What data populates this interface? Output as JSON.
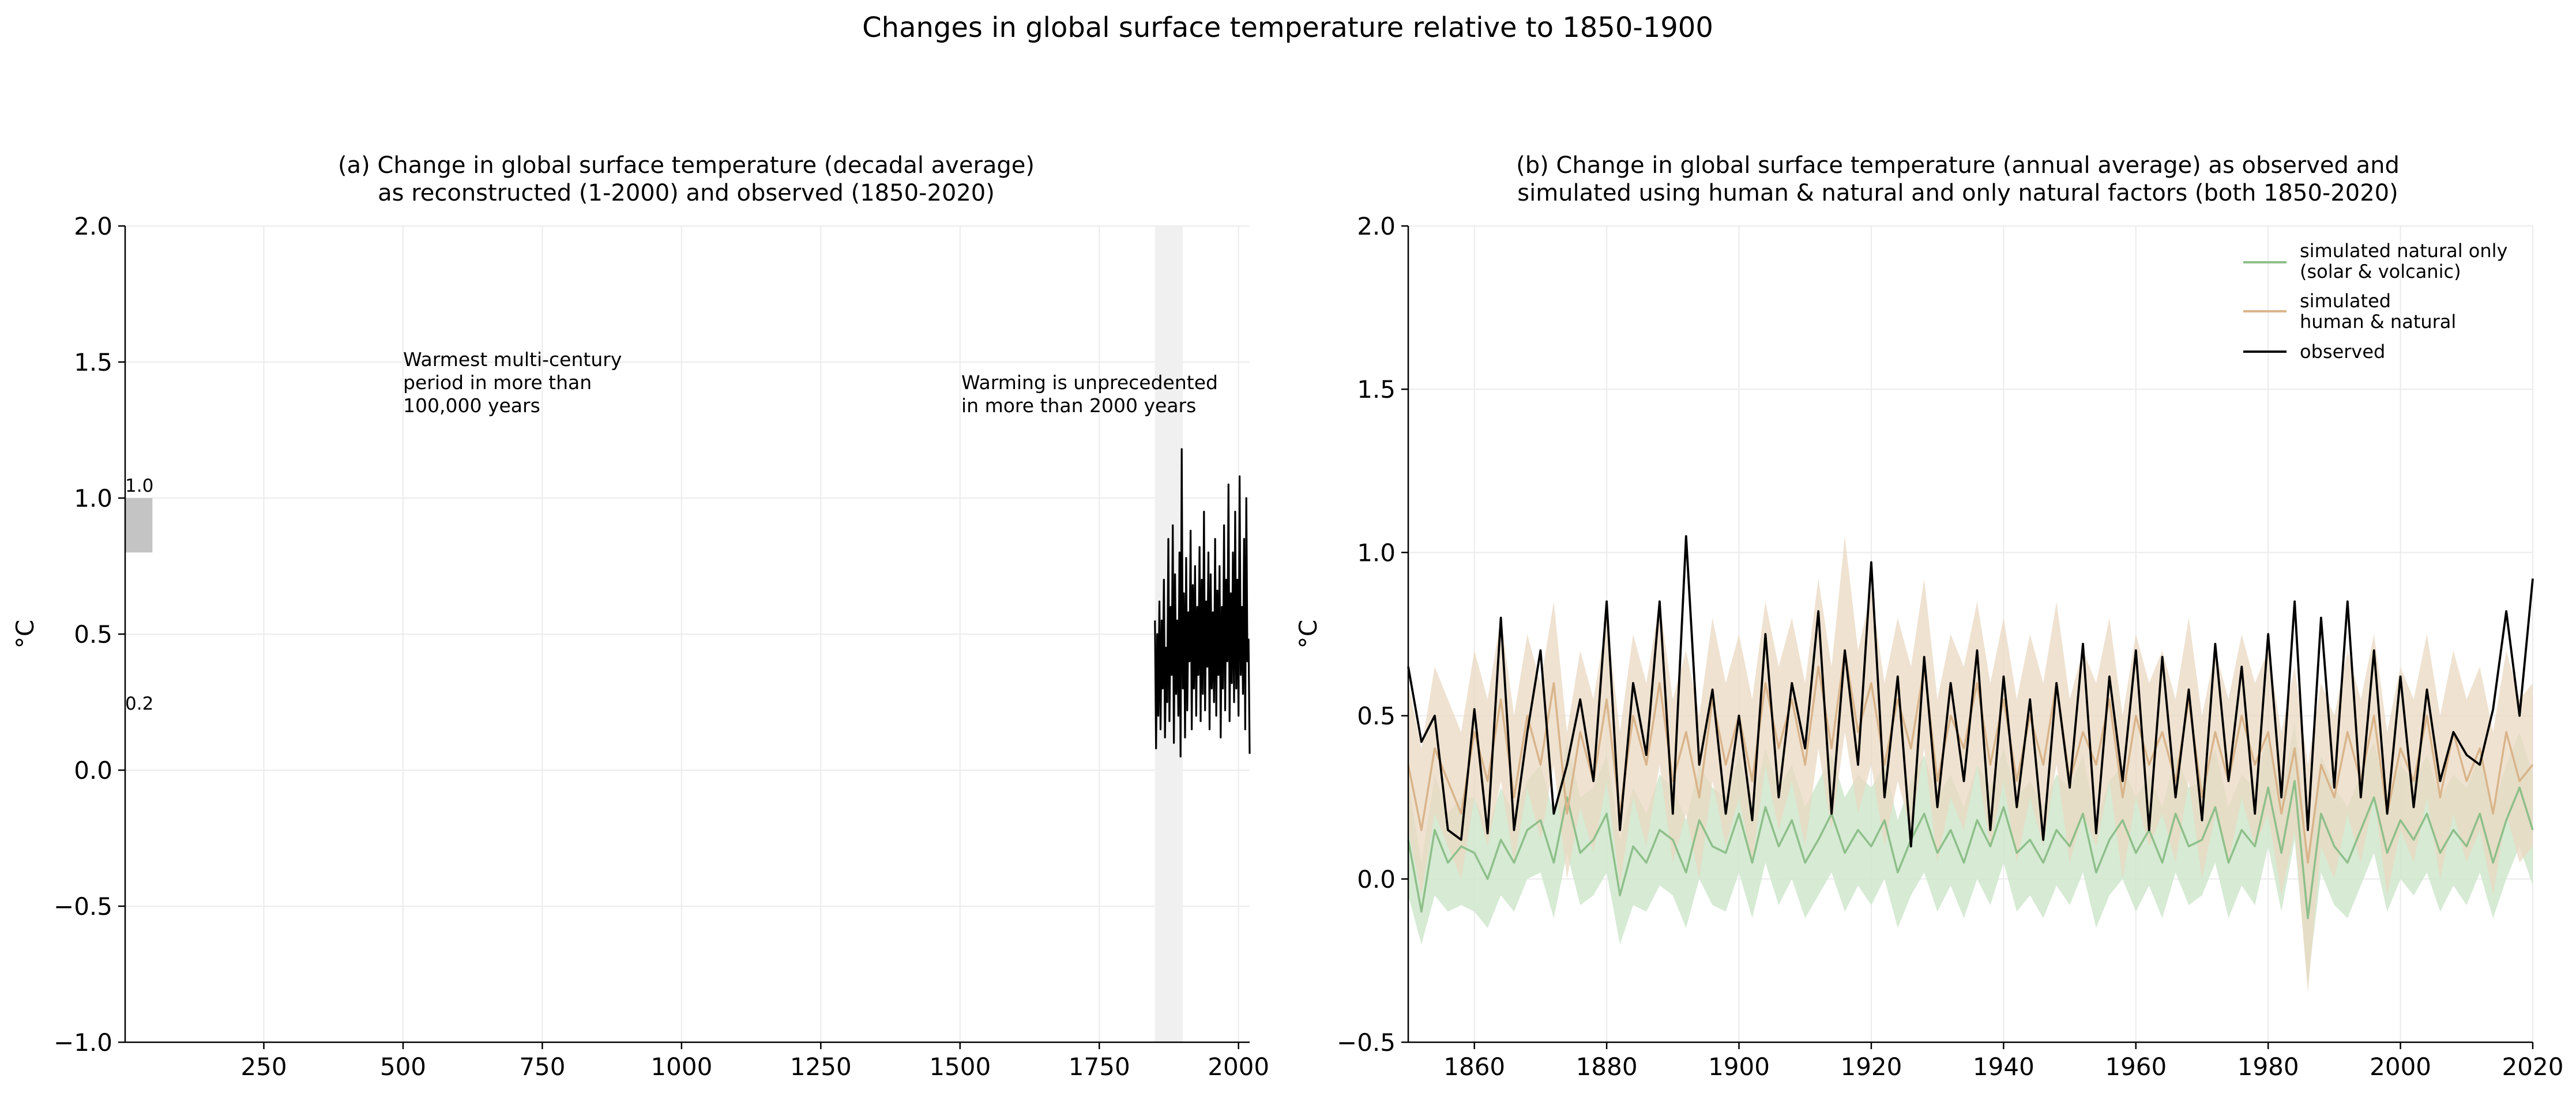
{
  "figure_title": "Changes in global surface temperature relative to 1850-1900",
  "panels": {
    "a": {
      "title_line1": "(a) Change in global surface temperature (decadal average)",
      "title_line2": "as reconstructed (1-2000) and observed (1850-2020)",
      "ylabel": "°C",
      "annotation_left": [
        "Warmest multi-century",
        "period in more than",
        "100,000 years"
      ],
      "annotation_right": [
        "Warming is unprecedented",
        "in more than 2000 years"
      ],
      "range_top_label": "1.0",
      "range_bottom_label": "0.2"
    },
    "b": {
      "title_line1": "(b) Change in global surface temperature (annual average) as observed and",
      "title_line2": "simulated using human & natural and only natural factors (both 1850-2020)",
      "ylabel": "°C",
      "legend": {
        "natural_line1": "simulated natural only",
        "natural_line2": "(solar & volcanic)",
        "human_line1": "simulated",
        "human_line2": "human & natural",
        "observed": "observed"
      }
    }
  },
  "colors": {
    "observed": "#000000",
    "human_natural": "#d9b48a",
    "human_natural_band": "#ead8c2",
    "natural_only": "#8ebf8a",
    "natural_only_band": "#cfe6cc",
    "highlight_bar": "#c4c4c4",
    "ref_span": "#f0f0f0",
    "grid": "#ebebeb"
  },
  "chart_data": [
    {
      "type": "line",
      "panel": "a",
      "xlim": [
        1,
        2020
      ],
      "ylim": [
        -1.0,
        2.0
      ],
      "x_ticks": [
        250,
        500,
        750,
        1000,
        1250,
        1500,
        1750,
        2000
      ],
      "x_tick_labels": [
        "250",
        "500",
        "750",
        "1000",
        "1250",
        "1500",
        "1750",
        "2000"
      ],
      "y_ticks": [
        -1.0,
        -0.5,
        0.0,
        0.5,
        1.0,
        1.5,
        2.0
      ],
      "y_tick_labels": [
        "−1.0",
        "−0.5",
        "0.0",
        "0.5",
        "1.0",
        "1.5",
        "2.0"
      ],
      "grid": true,
      "shaded_span_x": [
        1850,
        1900
      ],
      "highlight_bar": {
        "x": [
          1,
          50
        ],
        "y": [
          0.8,
          1.0
        ]
      },
      "series": [
        {
          "key": "observed",
          "x": [
            1850,
            1852,
            1854,
            1856,
            1858,
            1860,
            1862,
            1864,
            1866,
            1868,
            1870,
            1872,
            1874,
            1876,
            1878,
            1880,
            1882,
            1884,
            1886,
            1888,
            1890,
            1892,
            1894,
            1896,
            1898,
            1900,
            1902,
            1904,
            1906,
            1908,
            1910,
            1912,
            1914,
            1916,
            1918,
            1920,
            1922,
            1924,
            1926,
            1928,
            1930,
            1932,
            1934,
            1936,
            1938,
            1940,
            1942,
            1944,
            1946,
            1948,
            1950,
            1952,
            1954,
            1956,
            1958,
            1960,
            1962,
            1964,
            1966,
            1968,
            1970,
            1972,
            1974,
            1976,
            1978,
            1980,
            1982,
            1984,
            1986,
            1988,
            1990,
            1992,
            1994,
            1996,
            1998,
            2000,
            2002,
            2004,
            2006,
            2008,
            2010,
            2012,
            2014,
            2016,
            2018,
            2020
          ],
          "y": [
            0.55,
            0.08,
            0.5,
            0.2,
            0.62,
            0.15,
            0.55,
            0.3,
            0.7,
            0.12,
            0.45,
            0.25,
            0.85,
            0.18,
            0.6,
            0.35,
            0.9,
            0.1,
            0.72,
            0.28,
            0.55,
            0.2,
            0.8,
            0.05,
            1.18,
            0.3,
            0.65,
            0.12,
            0.78,
            0.22,
            0.58,
            0.4,
            0.88,
            0.15,
            0.68,
            0.3,
            0.75,
            0.2,
            0.6,
            0.35,
            0.82,
            0.18,
            0.7,
            0.28,
            0.95,
            0.22,
            0.62,
            0.38,
            0.8,
            0.15,
            0.72,
            0.3,
            0.58,
            0.25,
            0.85,
            0.2,
            0.66,
            0.35,
            0.75,
            0.12,
            0.6,
            0.3,
            0.9,
            0.22,
            0.7,
            0.4,
            1.05,
            0.18,
            0.65,
            0.32,
            0.8,
            0.25,
            0.95,
            0.3,
            0.7,
            0.2,
            1.08,
            0.35,
            0.6,
            0.28,
            0.85,
            0.15,
            1.0,
            0.4,
            0.48,
            0.06
          ]
        }
      ]
    },
    {
      "type": "line",
      "panel": "b",
      "xlim": [
        1850,
        2020
      ],
      "ylim": [
        -0.5,
        2.0
      ],
      "x_ticks": [
        1860,
        1880,
        1900,
        1920,
        1940,
        1960,
        1980,
        2000,
        2020
      ],
      "x_tick_labels": [
        "1860",
        "1880",
        "1900",
        "1920",
        "1940",
        "1960",
        "1980",
        "2000",
        "2020"
      ],
      "y_ticks": [
        -0.5,
        0.0,
        0.5,
        1.0,
        1.5,
        2.0
      ],
      "y_tick_labels": [
        "−0.5",
        "0.0",
        "0.5",
        "1.0",
        "1.5",
        "2.0"
      ],
      "grid": true,
      "legend_position": "upper right",
      "x": [
        1850,
        1852,
        1854,
        1856,
        1858,
        1860,
        1862,
        1864,
        1866,
        1868,
        1870,
        1872,
        1874,
        1876,
        1878,
        1880,
        1882,
        1884,
        1886,
        1888,
        1890,
        1892,
        1894,
        1896,
        1898,
        1900,
        1902,
        1904,
        1906,
        1908,
        1910,
        1912,
        1914,
        1916,
        1918,
        1920,
        1922,
        1924,
        1926,
        1928,
        1930,
        1932,
        1934,
        1936,
        1938,
        1940,
        1942,
        1944,
        1946,
        1948,
        1950,
        1952,
        1954,
        1956,
        1958,
        1960,
        1962,
        1964,
        1966,
        1968,
        1970,
        1972,
        1974,
        1976,
        1978,
        1980,
        1982,
        1984,
        1986,
        1988,
        1990,
        1992,
        1994,
        1996,
        1998,
        2000,
        2002,
        2004,
        2006,
        2008,
        2010,
        2012,
        2014,
        2016,
        2018,
        2020
      ],
      "series": [
        {
          "key": "natural_only",
          "y": [
            0.12,
            -0.1,
            0.15,
            0.05,
            0.1,
            0.08,
            0.0,
            0.12,
            0.05,
            0.15,
            0.18,
            0.05,
            0.25,
            0.08,
            0.12,
            0.2,
            -0.05,
            0.1,
            0.05,
            0.15,
            0.12,
            0.02,
            0.18,
            0.1,
            0.08,
            0.2,
            0.05,
            0.22,
            0.1,
            0.18,
            0.05,
            0.12,
            0.2,
            0.08,
            0.15,
            0.1,
            0.18,
            0.02,
            0.12,
            0.2,
            0.08,
            0.15,
            0.05,
            0.18,
            0.1,
            0.22,
            0.08,
            0.12,
            0.05,
            0.15,
            0.1,
            0.2,
            0.02,
            0.12,
            0.18,
            0.08,
            0.15,
            0.05,
            0.2,
            0.1,
            0.12,
            0.22,
            0.05,
            0.15,
            0.1,
            0.28,
            0.08,
            0.3,
            -0.12,
            0.2,
            0.1,
            0.05,
            0.15,
            0.25,
            0.08,
            0.18,
            0.12,
            0.2,
            0.08,
            0.15,
            0.1,
            0.2,
            0.05,
            0.18,
            0.28,
            0.15
          ],
          "lower": [
            -0.05,
            -0.2,
            -0.05,
            -0.1,
            -0.08,
            -0.1,
            -0.15,
            -0.05,
            -0.1,
            0.0,
            0.02,
            -0.12,
            0.08,
            -0.08,
            -0.05,
            0.02,
            -0.2,
            -0.08,
            -0.1,
            -0.02,
            -0.05,
            -0.15,
            0.0,
            -0.08,
            -0.1,
            0.02,
            -0.12,
            0.05,
            -0.08,
            0.0,
            -0.12,
            -0.05,
            0.02,
            -0.1,
            -0.02,
            -0.08,
            0.0,
            -0.15,
            -0.05,
            0.02,
            -0.1,
            -0.02,
            -0.12,
            0.0,
            -0.08,
            0.05,
            -0.1,
            -0.05,
            -0.12,
            -0.02,
            -0.08,
            0.02,
            -0.15,
            -0.05,
            0.0,
            -0.1,
            -0.02,
            -0.12,
            0.02,
            -0.08,
            -0.05,
            0.05,
            -0.12,
            -0.02,
            -0.08,
            0.1,
            -0.1,
            0.12,
            -0.32,
            0.02,
            -0.08,
            -0.12,
            -0.02,
            0.08,
            -0.1,
            0.0,
            -0.05,
            0.02,
            -0.1,
            -0.02,
            -0.08,
            0.02,
            -0.12,
            0.0,
            0.1,
            -0.02
          ],
          "upper": [
            0.3,
            0.05,
            0.32,
            0.2,
            0.25,
            0.25,
            0.15,
            0.28,
            0.2,
            0.3,
            0.35,
            0.2,
            0.42,
            0.25,
            0.28,
            0.38,
            0.12,
            0.28,
            0.2,
            0.32,
            0.28,
            0.18,
            0.35,
            0.28,
            0.25,
            0.38,
            0.22,
            0.4,
            0.28,
            0.35,
            0.22,
            0.3,
            0.38,
            0.25,
            0.32,
            0.28,
            0.35,
            0.18,
            0.3,
            0.38,
            0.25,
            0.32,
            0.22,
            0.35,
            0.28,
            0.4,
            0.25,
            0.3,
            0.22,
            0.32,
            0.28,
            0.38,
            0.18,
            0.3,
            0.35,
            0.25,
            0.32,
            0.22,
            0.38,
            0.28,
            0.3,
            0.4,
            0.22,
            0.32,
            0.28,
            0.45,
            0.25,
            0.48,
            0.08,
            0.38,
            0.28,
            0.22,
            0.32,
            0.42,
            0.25,
            0.35,
            0.3,
            0.38,
            0.25,
            0.32,
            0.28,
            0.38,
            0.22,
            0.35,
            0.45,
            0.32
          ]
        },
        {
          "key": "human_natural",
          "y": [
            0.35,
            0.15,
            0.4,
            0.3,
            0.2,
            0.45,
            0.3,
            0.55,
            0.25,
            0.5,
            0.35,
            0.6,
            0.2,
            0.45,
            0.3,
            0.55,
            0.2,
            0.5,
            0.35,
            0.6,
            0.3,
            0.45,
            0.25,
            0.55,
            0.35,
            0.5,
            0.3,
            0.6,
            0.4,
            0.55,
            0.35,
            0.65,
            0.4,
            0.7,
            0.45,
            0.6,
            0.35,
            0.55,
            0.4,
            0.65,
            0.3,
            0.5,
            0.4,
            0.6,
            0.35,
            0.55,
            0.3,
            0.5,
            0.35,
            0.6,
            0.3,
            0.45,
            0.35,
            0.55,
            0.25,
            0.5,
            0.35,
            0.45,
            0.3,
            0.55,
            0.25,
            0.45,
            0.3,
            0.5,
            0.35,
            0.45,
            0.2,
            0.4,
            0.05,
            0.35,
            0.25,
            0.45,
            0.3,
            0.5,
            0.2,
            0.4,
            0.3,
            0.5,
            0.25,
            0.45,
            0.3,
            0.4,
            0.2,
            0.45,
            0.3,
            0.35
          ],
          "lower": [
            0.15,
            -0.05,
            0.2,
            0.1,
            0.0,
            0.25,
            0.1,
            0.3,
            0.05,
            0.28,
            0.12,
            0.35,
            0.0,
            0.22,
            0.08,
            0.3,
            -0.02,
            0.25,
            0.1,
            0.35,
            0.05,
            0.2,
            0.0,
            0.3,
            0.1,
            0.25,
            0.05,
            0.35,
            0.15,
            0.3,
            0.1,
            0.4,
            0.15,
            0.45,
            0.2,
            0.35,
            0.1,
            0.3,
            0.15,
            0.4,
            0.05,
            0.25,
            0.15,
            0.35,
            0.1,
            0.3,
            0.05,
            0.25,
            0.1,
            0.35,
            0.05,
            0.2,
            0.1,
            0.3,
            0.0,
            0.25,
            0.1,
            0.2,
            0.05,
            0.3,
            0.0,
            0.2,
            0.05,
            0.25,
            0.1,
            0.2,
            -0.05,
            0.15,
            -0.35,
            0.1,
            0.0,
            0.2,
            0.05,
            0.25,
            -0.05,
            0.15,
            0.05,
            0.25,
            0.0,
            0.2,
            0.05,
            0.15,
            -0.05,
            0.2,
            0.05,
            0.1
          ],
          "upper": [
            0.6,
            0.4,
            0.65,
            0.55,
            0.45,
            0.7,
            0.55,
            0.8,
            0.5,
            0.75,
            0.6,
            0.85,
            0.45,
            0.7,
            0.55,
            0.8,
            0.45,
            0.75,
            0.6,
            0.85,
            0.55,
            0.7,
            0.5,
            0.8,
            0.6,
            0.75,
            0.55,
            0.85,
            0.65,
            0.8,
            0.6,
            0.92,
            0.65,
            1.05,
            0.7,
            0.88,
            0.6,
            0.8,
            0.65,
            0.92,
            0.55,
            0.75,
            0.65,
            0.85,
            0.6,
            0.8,
            0.55,
            0.75,
            0.6,
            0.85,
            0.55,
            0.7,
            0.6,
            0.8,
            0.5,
            0.75,
            0.6,
            0.7,
            0.55,
            0.8,
            0.5,
            0.7,
            0.55,
            0.75,
            0.6,
            0.7,
            0.45,
            0.65,
            0.35,
            0.6,
            0.5,
            0.7,
            0.55,
            0.75,
            0.45,
            0.65,
            0.55,
            0.75,
            0.5,
            0.7,
            0.55,
            0.65,
            0.45,
            0.7,
            0.55,
            0.6
          ]
        },
        {
          "key": "observed",
          "y": [
            0.65,
            0.42,
            0.5,
            0.15,
            0.12,
            0.52,
            0.14,
            0.8,
            0.15,
            0.45,
            0.7,
            0.2,
            0.35,
            0.55,
            0.3,
            0.85,
            0.15,
            0.6,
            0.38,
            0.85,
            0.2,
            1.05,
            0.35,
            0.58,
            0.2,
            0.5,
            0.18,
            0.75,
            0.25,
            0.6,
            0.4,
            0.82,
            0.2,
            0.7,
            0.35,
            0.97,
            0.25,
            0.62,
            0.1,
            0.68,
            0.22,
            0.6,
            0.3,
            0.7,
            0.15,
            0.62,
            0.22,
            0.55,
            0.12,
            0.6,
            0.28,
            0.72,
            0.14,
            0.62,
            0.3,
            0.7,
            0.15,
            0.68,
            0.25,
            0.58,
            0.18,
            0.72,
            0.3,
            0.65,
            0.2,
            0.75,
            0.25,
            0.85,
            0.15,
            0.8,
            0.28,
            0.85,
            0.25,
            0.7,
            0.2,
            0.62,
            0.22,
            0.58,
            0.3,
            0.45,
            0.38,
            0.35,
            0.52,
            0.82,
            0.5,
            0.92
          ]
        }
      ]
    }
  ]
}
